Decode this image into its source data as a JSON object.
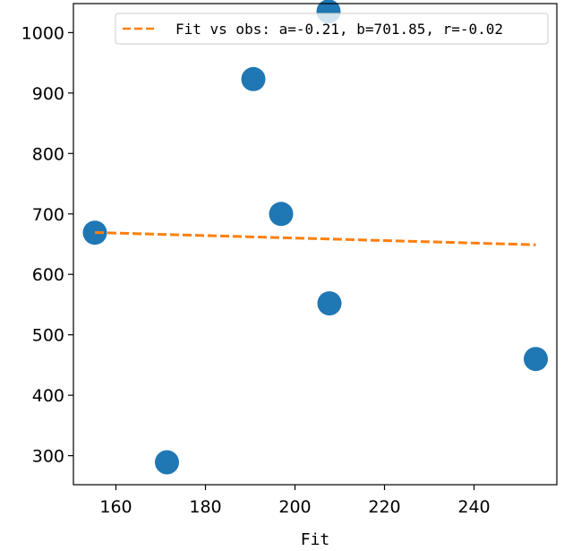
{
  "chart_data": {
    "type": "scatter",
    "title": "",
    "xlabel": "Fit",
    "ylabel": "",
    "xlim": [
      150.5,
      258.5
    ],
    "ylim": [
      252,
      1048
    ],
    "xticks": [
      160,
      180,
      200,
      220,
      240
    ],
    "yticks": [
      300,
      400,
      500,
      600,
      700,
      800,
      900,
      1000
    ],
    "grid": false,
    "legend_position": "top-right",
    "series": [
      {
        "type": "scatter",
        "color": "#1f77b4",
        "points": [
          {
            "x": 155.3,
            "y": 669
          },
          {
            "x": 171.4,
            "y": 289
          },
          {
            "x": 190.7,
            "y": 923
          },
          {
            "x": 196.9,
            "y": 700
          },
          {
            "x": 207.5,
            "y": 1035
          },
          {
            "x": 207.7,
            "y": 552
          },
          {
            "x": 253.8,
            "y": 460
          }
        ]
      },
      {
        "type": "line",
        "name": "Fit vs obs: a=-0.21, b=701.85, r=-0.02",
        "color": "#ff7f0e",
        "dashed": true,
        "x": [
          155.3,
          253.8
        ],
        "y": [
          669.2,
          648.9
        ]
      }
    ]
  }
}
